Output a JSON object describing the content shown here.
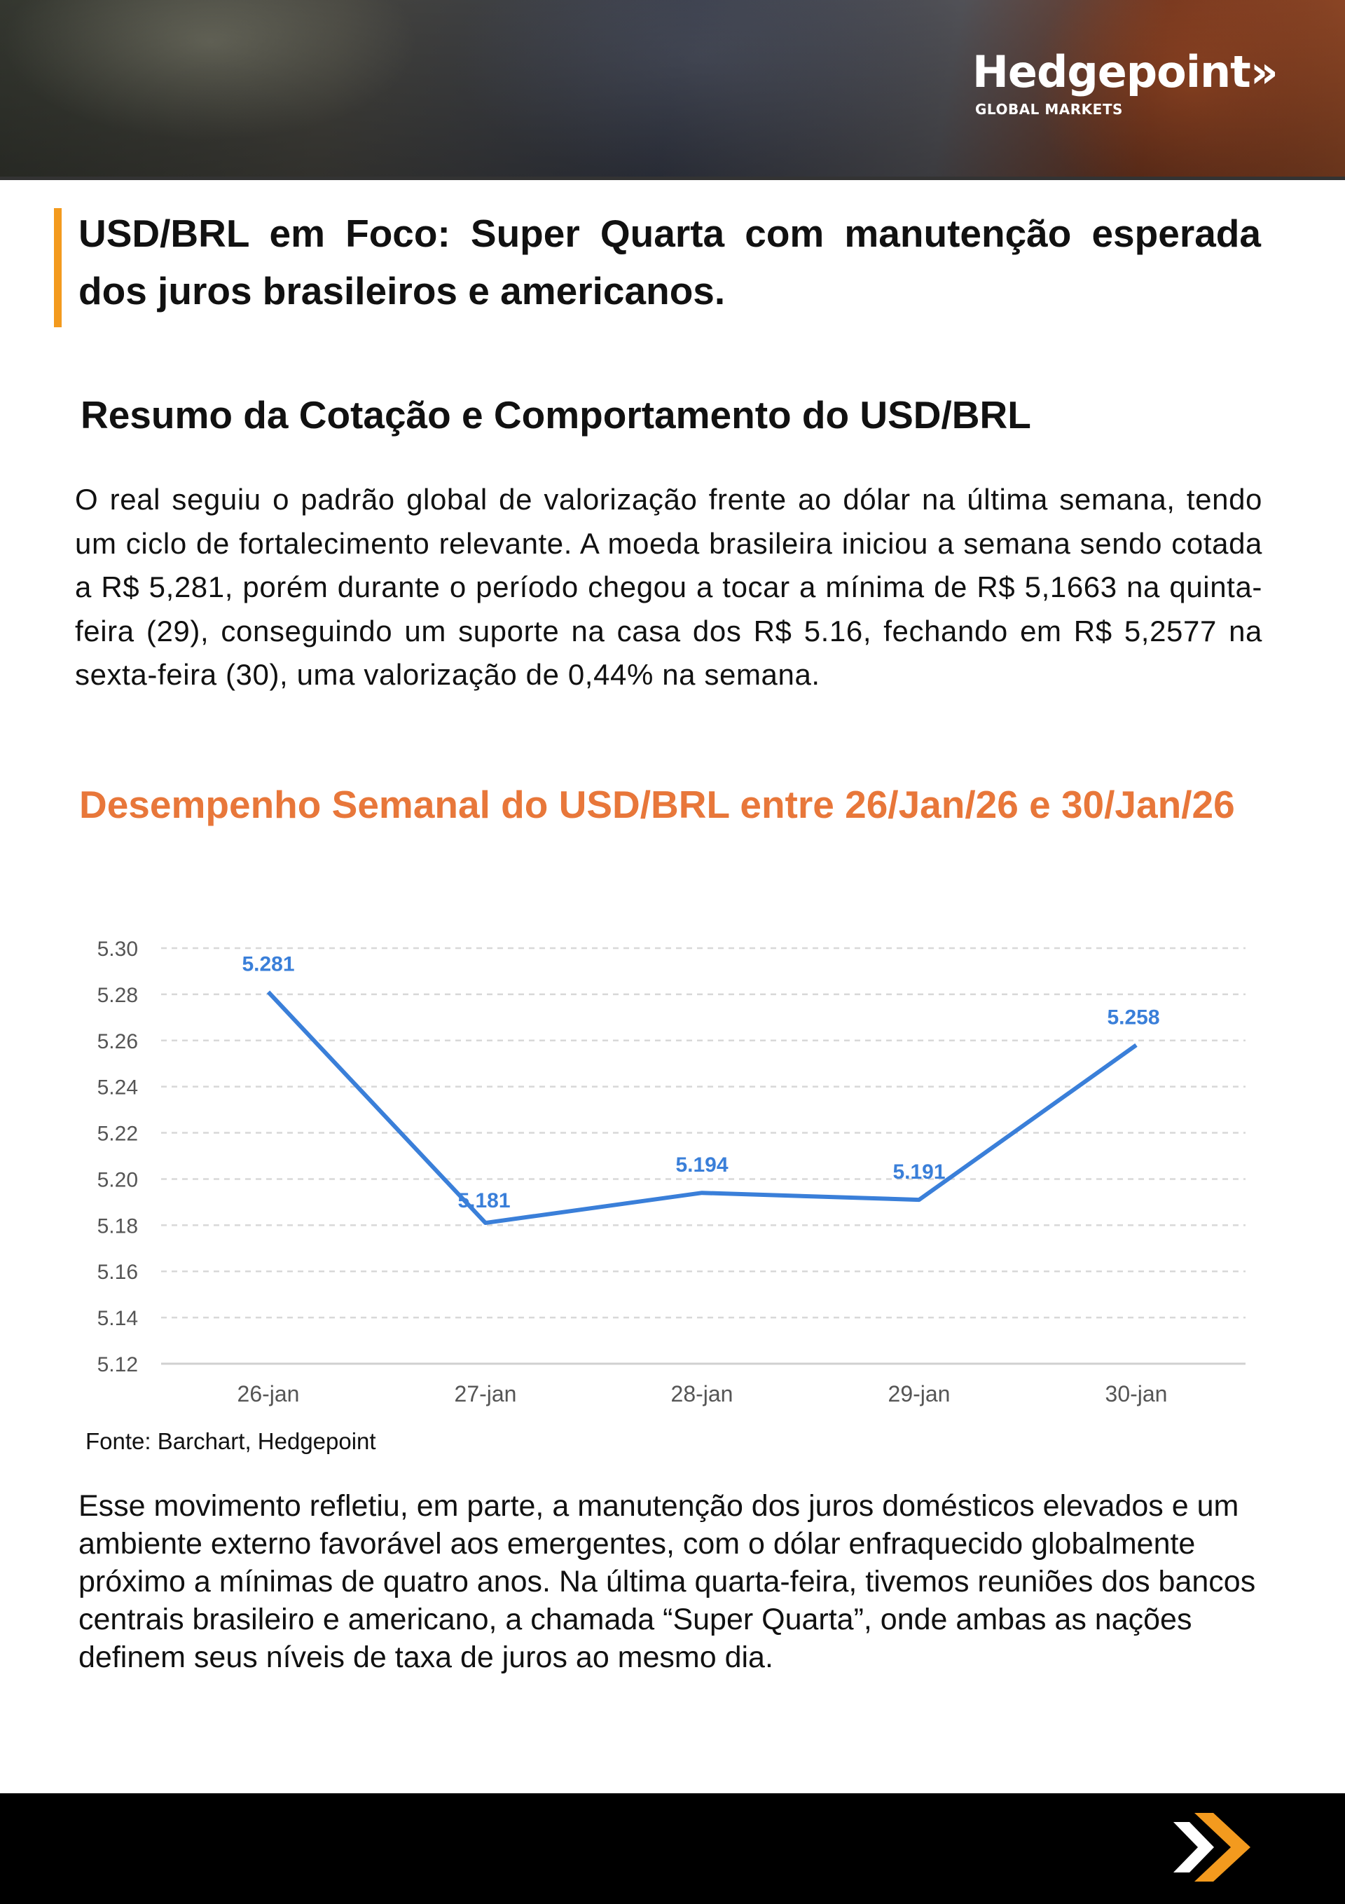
{
  "header": {
    "brand_name": "Hedgepoint»",
    "brand_sub": "GLOBAL MARKETS"
  },
  "article": {
    "title": "USD/BRL em Foco: Super Quarta com manutenção esperada dos juros brasileiros e americanos.",
    "section_title": "Resumo da Cotação e Comportamento do USD/BRL",
    "paragraph_1": "O real seguiu o padrão global de valorização frente ao dólar na última semana, tendo um ciclo de fortalecimento relevante. A moeda brasileira iniciou a semana sendo cotada a R$ 5,281, porém durante o período  chegou a tocar a mínima de R$ 5,1663 na quinta-feira (29), conseguindo um suporte na casa dos R$ 5.16, fechando em R$ 5,2577 na sexta-feira (30), uma valorização de 0,44% na semana.",
    "chart_heading": "Desempenho Semanal do USD/BRL entre 26/Jan/26 e 30/Jan/26",
    "source": "Fonte: Barchart, Hedgepoint",
    "paragraph_2": "Esse movimento refletiu, em parte, a manutenção dos juros domésticos elevados e um ambiente externo favorável aos emergentes, com o dólar enfraquecido globalmente próximo a mínimas de quatro anos. Na última quarta-feira, tivemos reuniões dos bancos centrais brasileiro e americano, a chamada “Super Quarta”, onde ambas as nações definem seus níveis de taxa de juros ao mesmo dia."
  },
  "chart_data": {
    "type": "line",
    "categories": [
      "26-jan",
      "27-jan",
      "28-jan",
      "29-jan",
      "30-jan"
    ],
    "values": [
      5.281,
      5.181,
      5.194,
      5.191,
      5.258
    ],
    "data_labels": [
      "5.281",
      "5.181",
      "5.194",
      "5.191",
      "5.258"
    ],
    "ylim": [
      5.12,
      5.3
    ],
    "yticks": [
      "5.30",
      "5.28",
      "5.26",
      "5.24",
      "5.22",
      "5.20",
      "5.18",
      "5.16",
      "5.14",
      "5.12"
    ],
    "grid": true,
    "line_color": "#3A7FD9"
  },
  "colors": {
    "accent_orange": "#F39A1E",
    "heading_orange": "#E8773A"
  },
  "footer": {
    "icon": "double-chevron-logo-icon"
  }
}
